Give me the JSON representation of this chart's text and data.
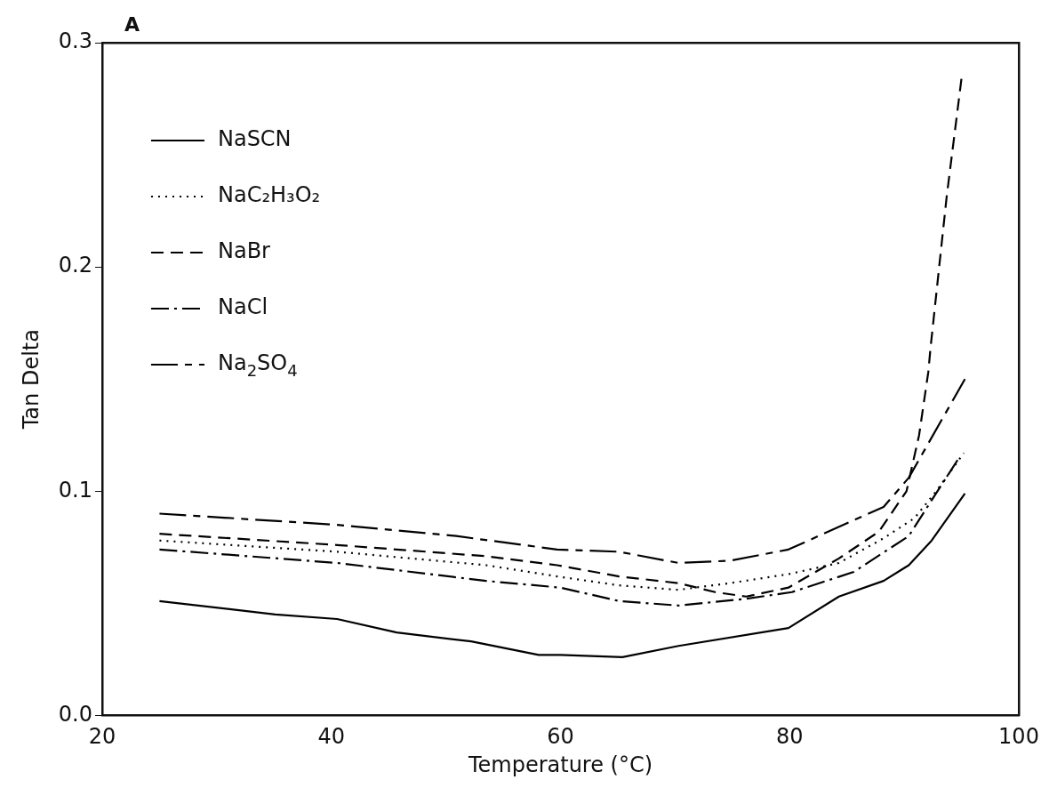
{
  "chart_data": {
    "type": "line",
    "title": "A",
    "xlabel": "Temperature (°C)",
    "ylabel": "Tan Delta",
    "xlim": [
      20,
      100
    ],
    "xticks": [
      20,
      40,
      60,
      80,
      100
    ],
    "ylim": [
      0,
      0.3
    ],
    "yticks": [
      {
        "value": 0,
        "label": "0.0"
      },
      {
        "value": 0.1,
        "label": "0.1"
      },
      {
        "value": 0.2,
        "label": "0.2"
      },
      {
        "value": 0.3,
        "label": "0.3"
      }
    ],
    "legend": "top left",
    "grid": false,
    "marker": "none",
    "series": [
      {
        "name": "NaSCN",
        "color": "#000000",
        "line_style": "solid",
        "x": [
          25,
          35.1,
          40.5,
          45.7,
          52.2,
          58.1,
          60,
          65.4,
          70.3,
          79.9,
          84.3,
          88.2,
          90.4,
          92.4,
          95.3
        ],
        "values": [
          0.051,
          0.045,
          0.043,
          0.037,
          0.033,
          0.027,
          0.027,
          0.026,
          0.031,
          0.039,
          0.053,
          0.06,
          0.067,
          0.078,
          0.099
        ]
      },
      {
        "name": "NaC₂H₃O₂",
        "color": "#000000",
        "line_style": "dotted",
        "x": [
          25,
          40.5,
          53.5,
          59.7,
          65.1,
          70.3,
          74.8,
          79.9,
          84.3,
          88.2,
          90.9,
          92.8,
          95.2
        ],
        "values": [
          0.078,
          0.073,
          0.067,
          0.062,
          0.058,
          0.056,
          0.059,
          0.063,
          0.068,
          0.079,
          0.088,
          0.1,
          0.117
        ]
      },
      {
        "name": "NaBr",
        "color": "#000000",
        "line_style": "dashed",
        "x": [
          25,
          40.5,
          53.5,
          59.7,
          65.1,
          70.3,
          73.5,
          76.2,
          79.9,
          84.3,
          87.8,
          90.2,
          91.3,
          92.1,
          92.3,
          93.7,
          95
        ],
        "values": [
          0.081,
          0.076,
          0.071,
          0.067,
          0.062,
          0.059,
          0.055,
          0.053,
          0.057,
          0.07,
          0.082,
          0.1,
          0.125,
          0.153,
          0.164,
          0.231,
          0.284
        ]
      },
      {
        "name": "NaCl",
        "color": "#000000",
        "line_style": "dashdot",
        "x": [
          25,
          40.5,
          53.5,
          60,
          65.1,
          70.3,
          76.2,
          80.2,
          85.6,
          90.4,
          92.4,
          94.8
        ],
        "values": [
          0.074,
          0.068,
          0.06,
          0.057,
          0.051,
          0.049,
          0.052,
          0.055,
          0.064,
          0.08,
          0.096,
          0.115
        ]
      },
      {
        "name": "Na$_{2}$SO$_{4}$",
        "color": "#000000",
        "line_style": "longdashdot",
        "x": [
          25,
          40.5,
          50.9,
          59.7,
          65.1,
          70.3,
          74.8,
          79.9,
          88.2,
          90.4,
          95.3
        ],
        "values": [
          0.09,
          0.085,
          0.08,
          0.074,
          0.073,
          0.068,
          0.069,
          0.074,
          0.093,
          0.106,
          0.15
        ]
      }
    ]
  }
}
